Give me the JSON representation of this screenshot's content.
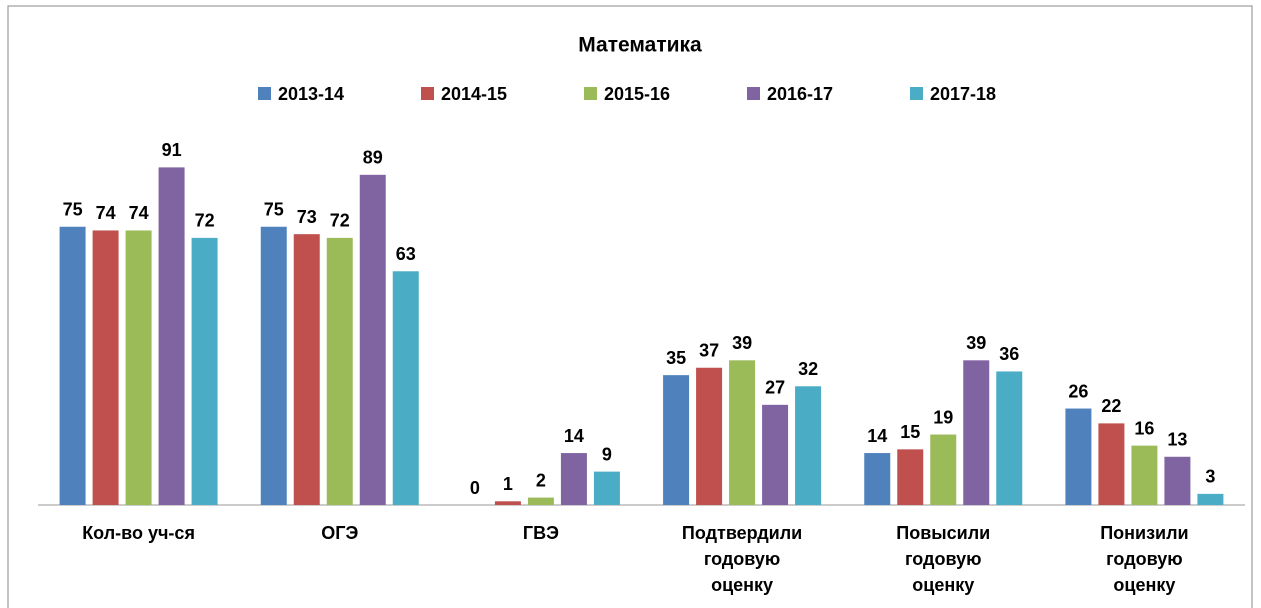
{
  "chart_data": {
    "type": "bar",
    "title": "Математика",
    "categories": [
      "Кол-во уч-ся",
      "ОГЭ",
      "ГВЭ",
      "Подтвердили\nгодовую\nоценку",
      "Повысили\nгодовую\nоценку",
      "Понизили\nгодовую\nоценку"
    ],
    "series": [
      {
        "name": "2013-14",
        "color": "#4f81bd",
        "values": [
          75,
          75,
          0,
          35,
          14,
          26
        ]
      },
      {
        "name": "2014-15",
        "color": "#c0504d",
        "values": [
          74,
          73,
          1,
          37,
          15,
          22
        ]
      },
      {
        "name": "2015-16",
        "color": "#9bbb59",
        "values": [
          74,
          72,
          2,
          39,
          19,
          16
        ]
      },
      {
        "name": "2016-17",
        "color": "#8064a2",
        "values": [
          91,
          89,
          14,
          27,
          39,
          13
        ]
      },
      {
        "name": "2017-18",
        "color": "#4bacc6",
        "values": [
          72,
          63,
          9,
          32,
          36,
          3
        ]
      }
    ],
    "ylim": [
      0,
      100
    ],
    "legend": "top"
  }
}
